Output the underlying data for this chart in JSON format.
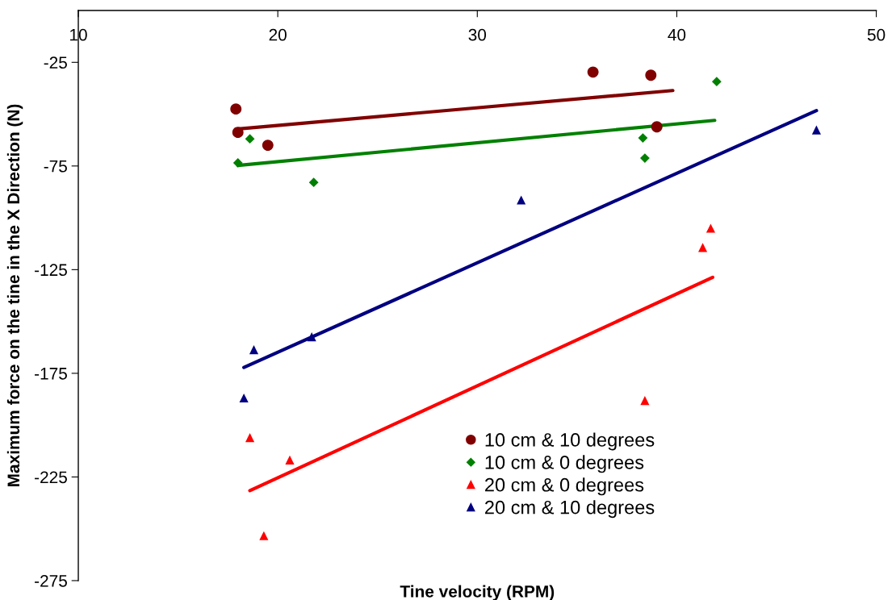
{
  "chart_data": {
    "type": "scatter",
    "xlabel": "Tine velocity (RPM)",
    "ylabel": "Maximum force on the tine in the X Direction (N)",
    "xlim": [
      10,
      50
    ],
    "xticks": [
      10,
      20,
      30,
      40,
      50
    ],
    "ylim": [
      -275,
      0
    ],
    "yticks": [
      -25,
      -75,
      -125,
      -175,
      -225,
      -275
    ],
    "grid": false,
    "legend": "bottom",
    "series": [
      {
        "name": "10 cm & 10 degrees",
        "color": "#800000",
        "marker": "circle",
        "x": [
          17.9,
          18.0,
          19.5,
          35.8,
          38.7,
          39.0
        ],
        "values": [
          -47.5,
          -58.8,
          -65.0,
          -29.7,
          -31.2,
          -56.1
        ]
      },
      {
        "name": "10 cm & 0 degrees",
        "color": "#008000",
        "marker": "diamond",
        "x": [
          18.0,
          18.6,
          21.8,
          38.3,
          38.4,
          42.0
        ],
        "values": [
          -73.5,
          -61.9,
          -82.9,
          -61.5,
          -71.2,
          -34.3
        ]
      },
      {
        "name": "20 cm & 0 degrees",
        "color": "#ff0000",
        "marker": "triangle",
        "x": [
          18.6,
          19.3,
          20.6,
          38.4,
          41.3,
          41.7
        ],
        "values": [
          -206.0,
          -253.3,
          -216.8,
          -188.1,
          -114.3,
          -105.0
        ]
      },
      {
        "name": "20 cm & 10 degrees",
        "color": "#000080",
        "marker": "triangle",
        "x": [
          18.3,
          18.8,
          21.7,
          32.2,
          47.0
        ],
        "values": [
          -186.9,
          -163.6,
          -157.4,
          -91.4,
          -57.6
        ]
      },
      {
        "type": "line",
        "color": "#800000",
        "x": [
          17.9,
          39.8
        ],
        "values": [
          -57.2,
          -38.6
        ]
      },
      {
        "type": "line",
        "color": "#008000",
        "x": [
          18.0,
          41.9
        ],
        "values": [
          -74.7,
          -53.0
        ]
      },
      {
        "type": "line",
        "color": "#ff0000",
        "x": [
          18.6,
          41.8
        ],
        "values": [
          -231.6,
          -128.7
        ]
      },
      {
        "type": "line",
        "color": "#000080",
        "x": [
          18.3,
          47.0
        ],
        "values": [
          -172.2,
          -48.3
        ]
      }
    ]
  }
}
